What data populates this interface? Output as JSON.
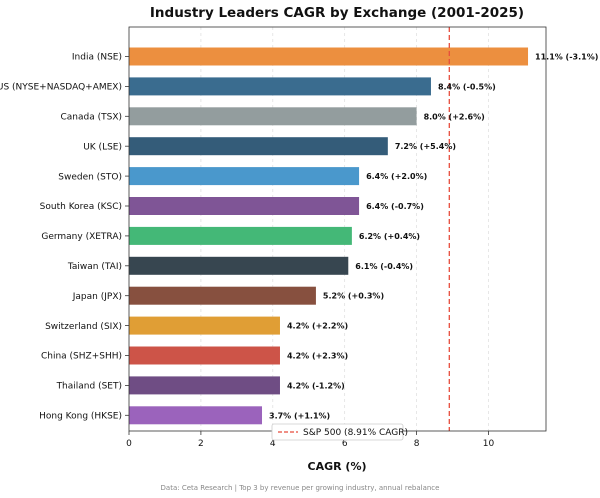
{
  "chart_data": {
    "type": "bar",
    "orientation": "horizontal",
    "title": "Industry Leaders CAGR by Exchange (2001-2025)",
    "xlabel": "CAGR (%)",
    "ylabel": "",
    "xlim": [
      0,
      11.6
    ],
    "xticks": [
      "0",
      "2",
      "4",
      "6",
      "8",
      "10"
    ],
    "grid": "vertical dashed",
    "categories": [
      "India (NSE)",
      "US (NYSE+NASDAQ+AMEX)",
      "Canada (TSX)",
      "UK (LSE)",
      "Sweden (STO)",
      "South Korea (KSC)",
      "Germany (XETRA)",
      "Taiwan (TAI)",
      "Japan (JPX)",
      "Switzerland (SIX)",
      "China (SHZ+SHH)",
      "Thailand (SET)",
      "Hong Kong (HKSE)"
    ],
    "values": [
      11.1,
      8.4,
      8.0,
      7.2,
      6.4,
      6.4,
      6.2,
      6.1,
      5.2,
      4.2,
      4.2,
      4.2,
      3.7
    ],
    "data_labels": [
      "11.1% (-3.1%)",
      "8.4% (-0.5%)",
      "8.0% (+2.6%)",
      "7.2% (+5.4%)",
      "6.4% (+2.0%)",
      "6.4% (-0.7%)",
      "6.2% (+0.4%)",
      "6.1% (-0.4%)",
      "5.2% (+0.3%)",
      "4.2% (+2.2%)",
      "4.2% (+2.3%)",
      "4.2% (-1.2%)",
      "3.7% (+1.1%)"
    ],
    "colors": [
      "#ec8f3f",
      "#3a6c8f",
      "#939d9e",
      "#345c79",
      "#4a98cc",
      "#7f5596",
      "#44b877",
      "#374650",
      "#87503f",
      "#e09e35",
      "#cd5448",
      "#6f4d84",
      "#9b63bc"
    ],
    "reference_line": {
      "value": 8.91,
      "label": "S&P 500 (8.91% CAGR)",
      "color": "#e74c3c",
      "style": "dashed"
    },
    "legend_position": "bottom-right"
  },
  "footer": "Data: Ceta Research | Top 3 by revenue per growing industry, annual rebalance"
}
